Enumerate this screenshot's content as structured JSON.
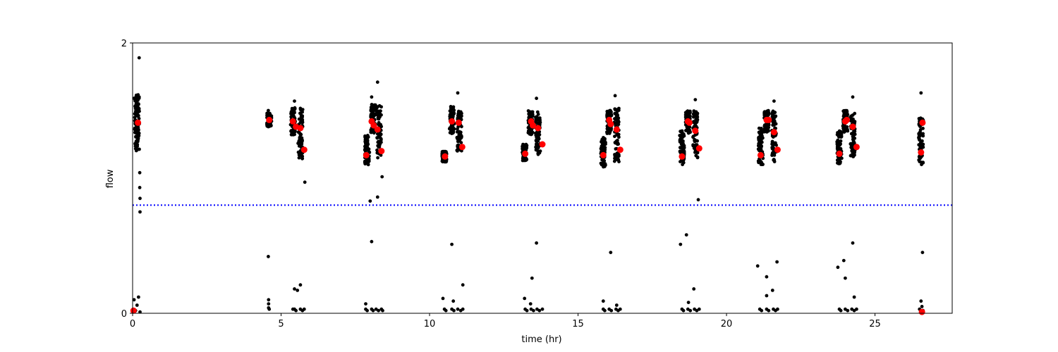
{
  "chart_data": {
    "type": "scatter",
    "title": "",
    "xlabel": "time (hr)",
    "ylabel": "flow",
    "xlim": [
      0,
      27.6
    ],
    "ylim": [
      0,
      2
    ],
    "xticks": [
      0,
      5,
      10,
      15,
      20,
      25
    ],
    "yticks": [
      0,
      2
    ],
    "grid": false,
    "threshold_line": {
      "y": 0.8,
      "style": "dotted",
      "color": "#0000ff"
    },
    "colors": {
      "raw": "#000000",
      "highlight": "#ff0000"
    },
    "clusters": [
      {
        "xc": 0.15,
        "bands": [
          [
            1.27,
            1.55
          ],
          [
            1.2,
            1.62
          ]
        ],
        "upper": 1.28
      },
      {
        "xc": 4.6,
        "bands": [
          [
            1.38,
            1.48
          ]
        ],
        "upper": 1.38
      },
      {
        "xc": 5.4,
        "bands": [
          [
            1.32,
            1.52
          ]
        ],
        "upper": 1.42
      },
      {
        "xc": 5.65,
        "bands": [
          [
            1.14,
            1.52
          ]
        ],
        "upper": 1.36
      },
      {
        "xc": 7.9,
        "bands": [
          [
            1.1,
            1.33
          ]
        ],
        "upper": 1.23
      },
      {
        "xc": 8.1,
        "bands": [
          [
            1.33,
            1.55
          ]
        ],
        "upper": 1.4
      },
      {
        "xc": 8.3,
        "bands": [
          [
            1.15,
            1.55
          ]
        ],
        "upper": 1.34
      },
      {
        "xc": 10.5,
        "bands": [
          [
            1.12,
            1.2
          ]
        ],
        "upper": 1.17
      },
      {
        "xc": 10.75,
        "bands": [
          [
            1.33,
            1.53
          ]
        ],
        "upper": 1.42
      },
      {
        "xc": 11.0,
        "bands": [
          [
            1.2,
            1.52
          ]
        ],
        "upper": 1.41
      },
      {
        "xc": 13.2,
        "bands": [
          [
            1.13,
            1.25
          ]
        ],
        "upper": 1.2
      },
      {
        "xc": 13.4,
        "bands": [
          [
            1.32,
            1.5
          ]
        ],
        "upper": 1.42
      },
      {
        "xc": 13.65,
        "bands": [
          [
            1.17,
            1.49
          ]
        ],
        "upper": 1.36
      },
      {
        "xc": 15.85,
        "bands": [
          [
            1.08,
            1.3
          ]
        ],
        "upper": 1.21
      },
      {
        "xc": 16.05,
        "bands": [
          [
            1.33,
            1.5
          ]
        ],
        "upper": 1.42
      },
      {
        "xc": 16.3,
        "bands": [
          [
            1.12,
            1.52
          ]
        ],
        "upper": 1.34
      },
      {
        "xc": 18.5,
        "bands": [
          [
            1.1,
            1.35
          ]
        ],
        "upper": 1.21
      },
      {
        "xc": 18.7,
        "bands": [
          [
            1.33,
            1.5
          ]
        ],
        "upper": 1.42
      },
      {
        "xc": 18.95,
        "bands": [
          [
            1.15,
            1.5
          ]
        ],
        "upper": 1.34
      },
      {
        "xc": 21.15,
        "bands": [
          [
            1.1,
            1.37
          ]
        ],
        "upper": 1.21
      },
      {
        "xc": 21.35,
        "bands": [
          [
            1.34,
            1.5
          ]
        ],
        "upper": 1.43
      },
      {
        "xc": 21.6,
        "bands": [
          [
            1.12,
            1.5
          ]
        ],
        "upper": 1.35
      },
      {
        "xc": 23.8,
        "bands": [
          [
            1.1,
            1.35
          ]
        ],
        "upper": 1.21
      },
      {
        "xc": 24.0,
        "bands": [
          [
            1.34,
            1.5
          ]
        ],
        "upper": 1.42
      },
      {
        "xc": 24.25,
        "bands": [
          [
            1.15,
            1.48
          ]
        ],
        "upper": 1.36
      },
      {
        "xc": 26.55,
        "bands": [
          [
            1.1,
            1.45
          ]
        ],
        "upper": 1.22
      }
    ],
    "highlight_points": [
      [
        0.18,
        1.41
      ],
      [
        0.03,
        0.02
      ],
      [
        4.6,
        1.43
      ],
      [
        5.4,
        1.42
      ],
      [
        5.5,
        1.38
      ],
      [
        5.65,
        1.37
      ],
      [
        5.78,
        1.21
      ],
      [
        7.87,
        1.17
      ],
      [
        8.05,
        1.42
      ],
      [
        8.12,
        1.39
      ],
      [
        8.25,
        1.36
      ],
      [
        8.38,
        1.2
      ],
      [
        10.52,
        1.16
      ],
      [
        10.75,
        1.42
      ],
      [
        10.98,
        1.41
      ],
      [
        11.1,
        1.23
      ],
      [
        13.22,
        1.18
      ],
      [
        13.42,
        1.42
      ],
      [
        13.48,
        1.39
      ],
      [
        13.65,
        1.37
      ],
      [
        13.8,
        1.25
      ],
      [
        15.85,
        1.17
      ],
      [
        16.05,
        1.43
      ],
      [
        16.1,
        1.4
      ],
      [
        16.3,
        1.36
      ],
      [
        16.42,
        1.21
      ],
      [
        18.5,
        1.16
      ],
      [
        18.7,
        1.42
      ],
      [
        18.75,
        1.41
      ],
      [
        18.95,
        1.35
      ],
      [
        19.08,
        1.22
      ],
      [
        21.15,
        1.17
      ],
      [
        21.35,
        1.43
      ],
      [
        21.42,
        1.43
      ],
      [
        21.6,
        1.34
      ],
      [
        21.72,
        1.21
      ],
      [
        23.8,
        1.18
      ],
      [
        24.0,
        1.42
      ],
      [
        24.05,
        1.43
      ],
      [
        24.25,
        1.38
      ],
      [
        24.38,
        1.23
      ],
      [
        26.55,
        1.19
      ],
      [
        26.6,
        1.41
      ],
      [
        26.58,
        0.01
      ]
    ],
    "outlier_points": [
      [
        0.22,
        1.89
      ],
      [
        0.05,
        1.59
      ],
      [
        0.22,
        1.6
      ],
      [
        0.24,
        1.04
      ],
      [
        0.24,
        0.93
      ],
      [
        0.25,
        0.85
      ],
      [
        0.25,
        0.75
      ],
      [
        0.05,
        0.1
      ],
      [
        0.2,
        0.12
      ],
      [
        0.15,
        0.06
      ],
      [
        0.1,
        0.02
      ],
      [
        0.25,
        0.01
      ],
      [
        4.57,
        1.5
      ],
      [
        4.57,
        0.42
      ],
      [
        4.58,
        0.1
      ],
      [
        4.58,
        0.07
      ],
      [
        4.58,
        0.04
      ],
      [
        4.6,
        0.03
      ],
      [
        5.45,
        1.57
      ],
      [
        5.55,
        0.17
      ],
      [
        5.45,
        0.18
      ],
      [
        5.65,
        0.21
      ],
      [
        5.8,
        0.97
      ],
      [
        5.4,
        0.03
      ],
      [
        5.45,
        0.03
      ],
      [
        5.5,
        0.02
      ],
      [
        5.65,
        0.03
      ],
      [
        5.72,
        0.02
      ],
      [
        5.78,
        0.03
      ],
      [
        8.05,
        1.6
      ],
      [
        8.25,
        1.71
      ],
      [
        8.2,
        1.53
      ],
      [
        8.4,
        1.01
      ],
      [
        8.25,
        0.86
      ],
      [
        8.0,
        0.83
      ],
      [
        8.05,
        0.53
      ],
      [
        7.85,
        0.07
      ],
      [
        7.85,
        0.03
      ],
      [
        7.9,
        0.02
      ],
      [
        8.05,
        0.03
      ],
      [
        8.1,
        0.02
      ],
      [
        8.2,
        0.03
      ],
      [
        8.28,
        0.02
      ],
      [
        8.38,
        0.03
      ],
      [
        8.42,
        0.02
      ],
      [
        10.45,
        0.11
      ],
      [
        10.75,
        0.51
      ],
      [
        10.95,
        1.63
      ],
      [
        10.8,
        0.09
      ],
      [
        11.12,
        0.21
      ],
      [
        10.5,
        0.03
      ],
      [
        10.55,
        0.02
      ],
      [
        10.75,
        0.03
      ],
      [
        10.82,
        0.02
      ],
      [
        10.95,
        0.03
      ],
      [
        11.05,
        0.02
      ],
      [
        11.12,
        0.03
      ],
      [
        13.6,
        1.59
      ],
      [
        13.6,
        0.52
      ],
      [
        13.45,
        0.26
      ],
      [
        13.2,
        0.11
      ],
      [
        13.4,
        0.07
      ],
      [
        13.22,
        0.03
      ],
      [
        13.28,
        0.02
      ],
      [
        13.42,
        0.03
      ],
      [
        13.5,
        0.02
      ],
      [
        13.62,
        0.03
      ],
      [
        13.7,
        0.02
      ],
      [
        13.8,
        0.03
      ],
      [
        16.25,
        1.61
      ],
      [
        16.1,
        0.45
      ],
      [
        15.85,
        0.09
      ],
      [
        16.3,
        0.06
      ],
      [
        15.85,
        0.03
      ],
      [
        15.9,
        0.02
      ],
      [
        16.05,
        0.03
      ],
      [
        16.12,
        0.02
      ],
      [
        16.28,
        0.03
      ],
      [
        16.35,
        0.02
      ],
      [
        16.42,
        0.03
      ],
      [
        18.65,
        0.58
      ],
      [
        18.45,
        0.51
      ],
      [
        18.95,
        1.58
      ],
      [
        18.9,
        0.18
      ],
      [
        19.05,
        0.84
      ],
      [
        18.72,
        0.08
      ],
      [
        18.5,
        0.03
      ],
      [
        18.55,
        0.02
      ],
      [
        18.7,
        0.03
      ],
      [
        18.78,
        0.02
      ],
      [
        18.92,
        0.03
      ],
      [
        19.0,
        0.02
      ],
      [
        19.08,
        0.03
      ],
      [
        21.05,
        0.35
      ],
      [
        21.35,
        0.27
      ],
      [
        21.55,
        0.17
      ],
      [
        21.7,
        0.38
      ],
      [
        21.35,
        0.13
      ],
      [
        21.6,
        1.57
      ],
      [
        21.12,
        0.03
      ],
      [
        21.18,
        0.02
      ],
      [
        21.35,
        0.03
      ],
      [
        21.42,
        0.02
      ],
      [
        21.58,
        0.03
      ],
      [
        21.65,
        0.02
      ],
      [
        21.72,
        0.03
      ],
      [
        23.75,
        0.34
      ],
      [
        23.95,
        0.39
      ],
      [
        24.0,
        0.26
      ],
      [
        24.25,
        0.52
      ],
      [
        24.3,
        0.12
      ],
      [
        24.25,
        1.6
      ],
      [
        23.8,
        0.03
      ],
      [
        23.85,
        0.02
      ],
      [
        24.0,
        0.03
      ],
      [
        24.08,
        0.02
      ],
      [
        24.22,
        0.03
      ],
      [
        24.3,
        0.02
      ],
      [
        24.38,
        0.03
      ],
      [
        26.55,
        1.63
      ],
      [
        26.6,
        0.45
      ],
      [
        26.55,
        0.09
      ],
      [
        26.58,
        0.05
      ],
      [
        26.5,
        0.03
      ],
      [
        26.62,
        0.02
      ]
    ]
  }
}
